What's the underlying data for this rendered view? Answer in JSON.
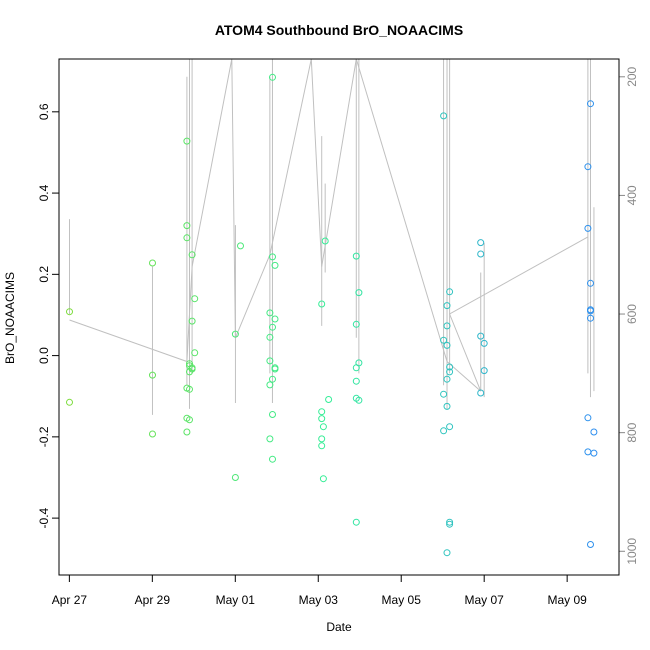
{
  "chart_data": {
    "type": "scatter",
    "title": "ATOM4 Southbound BrO_NOAACIMS",
    "xlabel": "Date",
    "ylabel": "BrO_NOAACIMS",
    "x_unit": "days",
    "xlim": [
      "2018-04-26T18:00",
      "2018-05-10T06:00"
    ],
    "ylim": [
      -0.54,
      0.73
    ],
    "y_ticks": [
      -0.4,
      -0.2,
      0.0,
      0.2,
      0.4,
      0.6
    ],
    "y_tick_labels": [
      "-0.4",
      "-0.2",
      "0.0",
      "0.2",
      "0.4",
      "0.6"
    ],
    "x_ticks": [
      "2018-04-27",
      "2018-04-29",
      "2018-05-01",
      "2018-05-03",
      "2018-05-05",
      "2018-05-07",
      "2018-05-09"
    ],
    "x_tick_labels": [
      "Apr 27",
      "Apr 29",
      "May 01",
      "May 03",
      "May 05",
      "May 07",
      "May 09"
    ],
    "y2lim": [
      1040,
      170
    ],
    "y2_ticks": [
      200,
      400,
      600,
      800,
      1000
    ],
    "y2_tick_labels": [
      "200",
      "400",
      "600",
      "800",
      "1000"
    ],
    "grid": false,
    "colors": {
      "axis": "#000000",
      "right_axis": "#888888",
      "pressure_line": "#c0c0c0",
      "gradient_start": "#7cdc3c",
      "gradient_mid": "#33ee99",
      "gradient_end": "#2d8fee"
    },
    "series": [
      {
        "values": [
          [
            "2018-04-27T00:05",
            0.108
          ],
          [
            "2018-04-27T00:05",
            -0.115
          ],
          [
            "2018-04-29T00:05",
            0.228
          ],
          [
            "2018-04-29T00:05",
            -0.048
          ],
          [
            "2018-04-29T00:05",
            -0.193
          ],
          [
            "2018-04-29T20:00",
            0.528
          ],
          [
            "2018-04-29T20:00",
            0.32
          ],
          [
            "2018-04-29T20:00",
            0.29
          ],
          [
            "2018-04-29T20:00",
            -0.08
          ],
          [
            "2018-04-29T20:00",
            -0.154
          ],
          [
            "2018-04-29T20:00",
            -0.188
          ],
          [
            "2018-04-29T21:30",
            -0.02
          ],
          [
            "2018-04-29T21:30",
            -0.025
          ],
          [
            "2018-04-29T21:30",
            -0.04
          ],
          [
            "2018-04-29T21:30",
            -0.083
          ],
          [
            "2018-04-29T21:30",
            -0.158
          ],
          [
            "2018-04-29T23:00",
            0.248
          ],
          [
            "2018-04-29T23:00",
            0.085
          ],
          [
            "2018-04-29T23:00",
            -0.033
          ],
          [
            "2018-04-29T23:00",
            -0.03
          ],
          [
            "2018-04-30T00:30",
            0.14
          ],
          [
            "2018-04-30T00:30",
            0.007
          ],
          [
            "2018-05-01T00:05",
            0.053
          ],
          [
            "2018-05-01T00:05",
            -0.3
          ],
          [
            "2018-05-01T03:00",
            0.27
          ],
          [
            "2018-05-01T20:00",
            0.105
          ],
          [
            "2018-05-01T20:00",
            0.045
          ],
          [
            "2018-05-01T20:00",
            -0.013
          ],
          [
            "2018-05-01T20:00",
            -0.072
          ],
          [
            "2018-05-01T20:00",
            -0.205
          ],
          [
            "2018-05-01T21:30",
            0.685
          ],
          [
            "2018-05-01T21:30",
            0.243
          ],
          [
            "2018-05-01T21:30",
            0.07
          ],
          [
            "2018-05-01T21:30",
            -0.058
          ],
          [
            "2018-05-01T21:30",
            -0.145
          ],
          [
            "2018-05-01T21:30",
            -0.255
          ],
          [
            "2018-05-01T23:00",
            0.222
          ],
          [
            "2018-05-01T23:00",
            0.09
          ],
          [
            "2018-05-01T23:00",
            -0.03
          ],
          [
            "2018-05-01T23:00",
            -0.033
          ],
          [
            "2018-05-03T02:00",
            0.127
          ],
          [
            "2018-05-03T02:00",
            -0.138
          ],
          [
            "2018-05-03T02:00",
            -0.155
          ],
          [
            "2018-05-03T02:00",
            -0.205
          ],
          [
            "2018-05-03T02:00",
            -0.222
          ],
          [
            "2018-05-03T03:00",
            -0.175
          ],
          [
            "2018-05-03T03:00",
            -0.303
          ],
          [
            "2018-05-03T04:00",
            0.282
          ],
          [
            "2018-05-03T06:00",
            -0.108
          ],
          [
            "2018-05-03T22:00",
            0.245
          ],
          [
            "2018-05-03T22:00",
            0.077
          ],
          [
            "2018-05-03T22:00",
            -0.03
          ],
          [
            "2018-05-03T22:00",
            -0.063
          ],
          [
            "2018-05-03T22:00",
            -0.105
          ],
          [
            "2018-05-03T22:00",
            -0.41
          ],
          [
            "2018-05-03T23:30",
            0.155
          ],
          [
            "2018-05-03T23:30",
            -0.018
          ],
          [
            "2018-05-03T23:30",
            -0.11
          ],
          [
            "2018-05-06T00:30",
            0.59
          ],
          [
            "2018-05-06T00:30",
            0.038
          ],
          [
            "2018-05-06T00:30",
            -0.095
          ],
          [
            "2018-05-06T00:30",
            -0.185
          ],
          [
            "2018-05-06T02:30",
            0.123
          ],
          [
            "2018-05-06T02:30",
            0.073
          ],
          [
            "2018-05-06T02:30",
            0.025
          ],
          [
            "2018-05-06T02:30",
            -0.058
          ],
          [
            "2018-05-06T02:30",
            -0.125
          ],
          [
            "2018-05-06T02:30",
            -0.485
          ],
          [
            "2018-05-06T04:00",
            0.157
          ],
          [
            "2018-05-06T04:00",
            -0.028
          ],
          [
            "2018-05-06T04:00",
            -0.04
          ],
          [
            "2018-05-06T04:00",
            -0.175
          ],
          [
            "2018-05-06T04:00",
            -0.41
          ],
          [
            "2018-05-06T04:00",
            -0.415
          ],
          [
            "2018-05-06T22:00",
            0.278
          ],
          [
            "2018-05-06T22:00",
            0.25
          ],
          [
            "2018-05-06T22:00",
            0.048
          ],
          [
            "2018-05-06T22:00",
            -0.092
          ],
          [
            "2018-05-07T00:00",
            0.03
          ],
          [
            "2018-05-07T00:00",
            -0.037
          ],
          [
            "2018-05-09T12:00",
            0.465
          ],
          [
            "2018-05-09T12:00",
            0.313
          ],
          [
            "2018-05-09T12:00",
            -0.153
          ],
          [
            "2018-05-09T12:00",
            -0.237
          ],
          [
            "2018-05-09T13:30",
            0.62
          ],
          [
            "2018-05-09T13:30",
            0.178
          ],
          [
            "2018-05-09T13:30",
            0.113
          ],
          [
            "2018-05-09T13:30",
            0.11
          ],
          [
            "2018-05-09T13:30",
            0.092
          ],
          [
            "2018-05-09T13:30",
            -0.465
          ],
          [
            "2018-05-09T15:30",
            -0.24
          ],
          [
            "2018-05-09T15:30",
            -0.188
          ]
        ]
      }
    ]
  }
}
